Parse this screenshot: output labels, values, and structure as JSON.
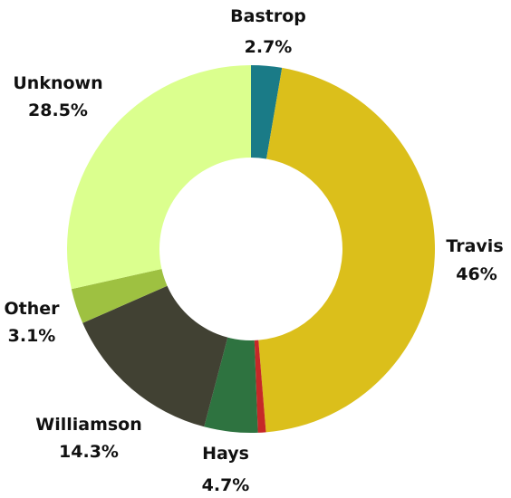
{
  "chart_data": {
    "type": "pie",
    "donut": true,
    "start_angle_deg": 0,
    "direction": "clockwise",
    "slices": [
      {
        "name": "Bastrop",
        "value": 2.7,
        "label": "2.7%",
        "color": "#1a7b87",
        "labeled": true
      },
      {
        "name": "Travis",
        "value": 46,
        "label": "46%",
        "color": "#dbbf1b",
        "labeled": true
      },
      {
        "name": "",
        "value": 0.7,
        "label": "",
        "color": "#c62828",
        "labeled": false
      },
      {
        "name": "Hays",
        "value": 4.7,
        "label": "4.7%",
        "color": "#2e7340",
        "labeled": true
      },
      {
        "name": "Williamson",
        "value": 14.3,
        "label": "14.3%",
        "color": "#414133",
        "labeled": true
      },
      {
        "name": "Other",
        "value": 3.1,
        "label": "3.1%",
        "color": "#9ec141",
        "labeled": true
      },
      {
        "name": "Unknown",
        "value": 28.5,
        "label": "28.5%",
        "color": "#dbff8e",
        "labeled": true
      }
    ]
  }
}
